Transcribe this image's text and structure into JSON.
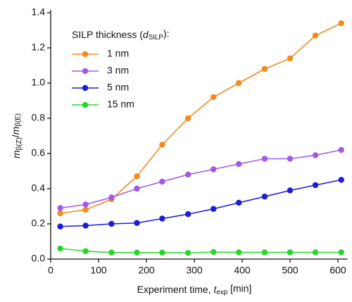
{
  "chart_data": {
    "type": "line",
    "xlabel": [
      {
        "text": "Experiment time, ",
        "style": "normal"
      },
      {
        "text": "t",
        "style": "italic"
      },
      {
        "text": "exp",
        "style": "sub"
      },
      {
        "text": " [min]",
        "style": "normal"
      }
    ],
    "ylabel": [
      {
        "text": "m",
        "style": "italic"
      },
      {
        "text": "β(Z)",
        "style": "sub"
      },
      {
        "text": "/",
        "style": "normal"
      },
      {
        "text": "m",
        "style": "italic"
      },
      {
        "text": "β(E)",
        "style": "sub"
      }
    ],
    "legend_title": [
      {
        "text": "SILP thickness (",
        "style": "normal"
      },
      {
        "text": "d",
        "style": "italic"
      },
      {
        "text": "SILP",
        "style": "sub"
      },
      {
        "text": "):",
        "style": "normal"
      }
    ],
    "x": [
      20,
      73,
      127,
      180,
      233,
      287,
      340,
      393,
      447,
      500,
      553,
      607
    ],
    "series": [
      {
        "name": "1 nm",
        "color": "#f28a1e",
        "values": [
          0.26,
          0.28,
          0.34,
          0.47,
          0.65,
          0.8,
          0.92,
          1.0,
          1.08,
          1.14,
          1.27,
          1.34
        ]
      },
      {
        "name": "3 nm",
        "color": "#a05ae6",
        "values": [
          0.29,
          0.31,
          0.35,
          0.4,
          0.44,
          0.48,
          0.51,
          0.54,
          0.57,
          0.57,
          0.59,
          0.62
        ]
      },
      {
        "name": "5 nm",
        "color": "#1c1cd9",
        "values": [
          0.185,
          0.19,
          0.2,
          0.205,
          0.23,
          0.255,
          0.285,
          0.32,
          0.355,
          0.39,
          0.42,
          0.45
        ]
      },
      {
        "name": "15 nm",
        "color": "#2ad62a",
        "values": [
          0.06,
          0.045,
          0.037,
          0.037,
          0.037,
          0.035,
          0.04,
          0.038,
          0.038,
          0.038,
          0.038,
          0.038
        ]
      }
    ],
    "xlim": [
      0,
      620
    ],
    "xticks": [
      0,
      100,
      200,
      300,
      400,
      500,
      600
    ],
    "ylim": [
      0,
      1.4
    ],
    "yticks": [
      {
        "value": 0,
        "label": "0.0"
      },
      {
        "value": 0.2,
        "label": "0.2"
      },
      {
        "value": 0.4,
        "label": "0.4"
      },
      {
        "value": 0.6,
        "label": "0.6"
      },
      {
        "value": 0.8,
        "label": "0.8"
      },
      {
        "value": 1.0,
        "label": "1.0"
      },
      {
        "value": 1.2,
        "label": "1.2"
      },
      {
        "value": 1.4,
        "label": "1.4"
      }
    ],
    "legend": "upper left"
  }
}
